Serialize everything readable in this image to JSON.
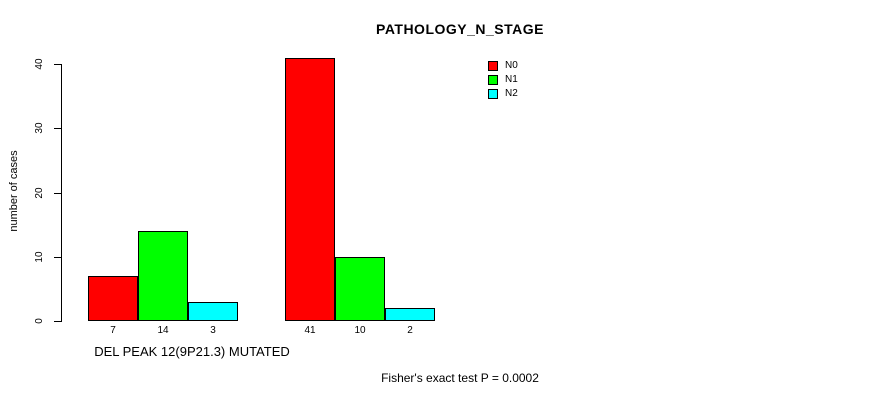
{
  "title": "PATHOLOGY_N_STAGE",
  "colors": {
    "background": "#FFFFFF",
    "axis": "#000000",
    "text": "#000000",
    "bar_border": "#000000",
    "n0": "#FF0000",
    "n1": "#00FF00",
    "n2": "#00FFFF"
  },
  "chart_data": {
    "type": "bar",
    "title": "PATHOLOGY_N_STAGE",
    "xlabel": "",
    "ylabel": "number of cases",
    "ylim": [
      0,
      40
    ],
    "yticks": [
      0,
      10,
      20,
      30,
      40
    ],
    "grid": false,
    "legend_position": "top-right",
    "categories": [
      "DEL PEAK 12(9P21.3) MUTATED",
      ""
    ],
    "series": [
      {
        "name": "N0",
        "color": "#FF0000",
        "values": [
          7,
          41
        ]
      },
      {
        "name": "N1",
        "color": "#00FF00",
        "values": [
          14,
          10
        ]
      },
      {
        "name": "N2",
        "color": "#00FFFF",
        "values": [
          3,
          2
        ]
      }
    ],
    "bar_value_labels": [
      [
        7,
        14,
        3
      ],
      [
        41,
        10,
        2
      ]
    ],
    "annotation": "Fisher's exact test P = 0.0002"
  }
}
